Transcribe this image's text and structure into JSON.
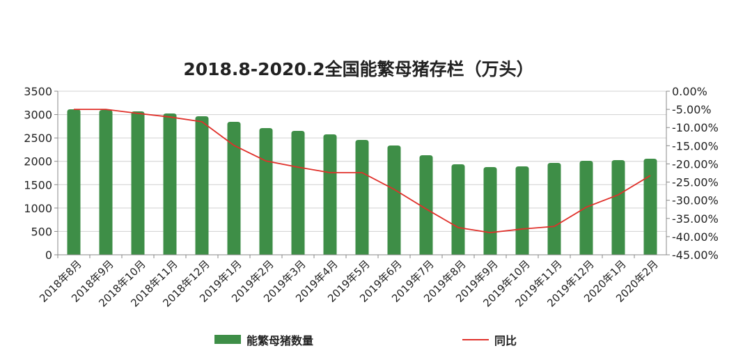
{
  "chart_data": {
    "type": "bar+line",
    "title": "2018.8-2020.2全国能繁母猪存栏（万头）",
    "categories": [
      "2018年8月",
      "2018年9月",
      "2018年10月",
      "2018年11月",
      "2018年12月",
      "2019年1月",
      "2019年2月",
      "2019年3月",
      "2019年4月",
      "2019年5月",
      "2019年6月",
      "2019年7月",
      "2019年8月",
      "2019年9月",
      "2019年10月",
      "2019年11月",
      "2019年12月",
      "2020年1月",
      "2020年2月"
    ],
    "series": [
      {
        "name": "能繁母猪数量",
        "type": "bar",
        "axis": "left",
        "color": "#3e8e47",
        "values": [
          3113,
          3098,
          3068,
          3023,
          2964,
          2845,
          2711,
          2651,
          2577,
          2457,
          2338,
          2130,
          1936,
          1877,
          1891,
          1966,
          2011,
          2026,
          2055
        ]
      },
      {
        "name": "同比",
        "type": "line",
        "axis": "right",
        "color": "#e0302a",
        "values": [
          -5.0,
          -5.0,
          -6.1,
          -7.1,
          -8.4,
          -14.9,
          -19.2,
          -20.9,
          -22.4,
          -22.4,
          -27.0,
          -32.4,
          -37.5,
          -38.9,
          -37.9,
          -37.2,
          -31.9,
          -28.5,
          -23.2
        ]
      }
    ],
    "left_axis": {
      "ylim": [
        0,
        3500
      ],
      "ticks": [
        "0",
        "500",
        "1000",
        "1500",
        "2000",
        "2500",
        "3000",
        "3500"
      ]
    },
    "right_axis": {
      "ylim": [
        -45,
        0
      ],
      "ticks": [
        "0.00%",
        "-5.00%",
        "-10.00%",
        "-15.00%",
        "-20.00%",
        "-25.00%",
        "-30.00%",
        "-35.00%",
        "-40.00%",
        "-45.00%"
      ]
    },
    "grid": true,
    "legend_position": "bottom"
  }
}
